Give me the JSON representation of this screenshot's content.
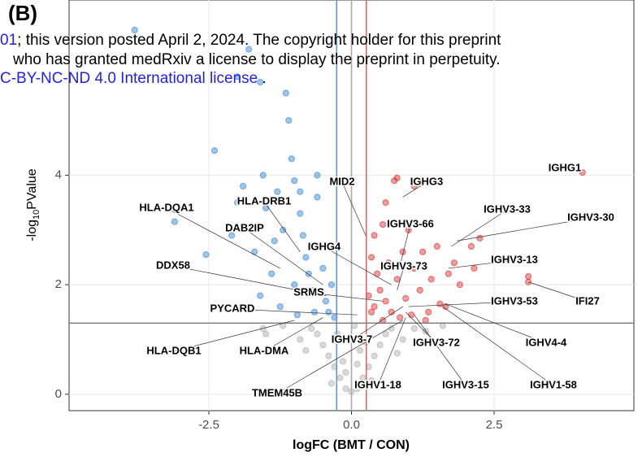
{
  "chart_data": {
    "type": "scatter",
    "panel_label": "(B)",
    "overlay_text": [
      [
        "01",
        "; this version posted April 2, 2024. The copyright holder for this preprint"
      ],
      [
        "who has granted medRxiv a license to display the preprint in perpetuity."
      ],
      [
        "C-BY-NC-ND 4.0 International license",
        " ."
      ]
    ],
    "x_label": "logFC (BMT / CON)",
    "y_label": {
      "prefix": "-log",
      "sub": "10",
      "suffix": "PValue"
    },
    "xlim": [
      -4.95,
      4.95
    ],
    "ylim": [
      -0.3,
      7.2
    ],
    "xticks": [
      -2.5,
      {
        "value": 0,
        "label": "0.0"
      },
      2.5
    ],
    "yticks": [
      0,
      2,
      4
    ],
    "grid": true,
    "vlines": [
      {
        "value": -0.26,
        "color": "#5b9bd5"
      },
      {
        "value": 0,
        "color": "#aaaaaa"
      },
      {
        "value": 0.26,
        "color": "#e06666"
      }
    ],
    "hline": {
      "value": 1.3,
      "color": "#777777"
    },
    "series": [
      {
        "color": "#aaaaaa",
        "x": [
          -0.1,
          0.1,
          -0.2,
          0.2,
          -0.3,
          0.3,
          -0.4,
          0.4,
          -0.5,
          0.5,
          -0.6,
          0.6,
          -0.7,
          0.7,
          -0.15,
          0.15,
          -0.05,
          0.05,
          -0.25,
          0.25,
          -0.9,
          0.9,
          -1.2,
          1.1,
          -1.5,
          1.3,
          -0.8,
          0.8,
          -0.1,
          0.1,
          -1.55,
          1.6,
          -0.35,
          0.35,
          0
        ],
        "values": [
          0.1,
          0.1,
          0.3,
          0.3,
          0.5,
          0.5,
          0.7,
          0.7,
          0.9,
          0.9,
          1.1,
          1.1,
          1.2,
          1.2,
          0.6,
          0.8,
          1.0,
          1.25,
          1.1,
          0.95,
          1.0,
          1.0,
          1.25,
          1.2,
          1.1,
          1.15,
          0.8,
          0.75,
          0.4,
          0.55,
          1.2,
          1.25,
          0.2,
          0.25,
          0.05
        ]
      },
      {
        "color": "#2f7fd1",
        "x": [
          -3.1,
          -3.8,
          -2.4,
          -2.55,
          -2.0,
          -1.9,
          -1.8,
          -1.55,
          -1.5,
          -1.3,
          -1.2,
          -1.15,
          -1.1,
          -1.05,
          -1.0,
          -0.9,
          -0.85,
          -0.8,
          -0.75,
          -0.7,
          -0.6,
          -0.55,
          -0.5,
          -0.45,
          -0.4,
          -0.35,
          -1.7,
          -1.4,
          -1.6,
          -2.1,
          -1.25,
          -1.0,
          -0.95,
          -0.65,
          -0.3,
          -1.35,
          -0.6,
          -0.9,
          -2.0,
          -1.6
        ],
        "values": [
          3.15,
          6.65,
          4.45,
          2.55,
          3.5,
          3.8,
          6.3,
          4.0,
          3.4,
          3.7,
          3.0,
          5.5,
          5.0,
          4.3,
          3.9,
          3.3,
          2.9,
          2.5,
          2.2,
          1.9,
          3.6,
          2.7,
          2.3,
          1.7,
          1.5,
          2.0,
          2.6,
          2.2,
          1.8,
          2.9,
          1.6,
          2.0,
          1.45,
          1.5,
          1.4,
          2.8,
          4.0,
          3.7,
          5.8,
          5.7
        ]
      },
      {
        "color": "#d62728",
        "x": [
          4.05,
          3.1,
          3.1,
          2.25,
          2.1,
          2.15,
          1.9,
          1.8,
          1.65,
          1.55,
          1.3,
          1.1,
          0.8,
          0.75,
          0.6,
          0.55,
          0.4,
          0.35,
          0.45,
          0.5,
          0.6,
          0.7,
          0.8,
          0.9,
          1.0,
          1.1,
          1.2,
          1.25,
          0.35,
          0.4,
          0.65,
          0.95,
          1.05,
          1.4,
          1.5,
          0.3,
          0.85,
          0.55,
          1.7,
          1.35
        ],
        "values": [
          4.05,
          2.05,
          2.15,
          2.85,
          2.7,
          2.3,
          2.0,
          2.4,
          1.6,
          1.65,
          1.35,
          3.8,
          3.95,
          3.9,
          3.5,
          3.1,
          2.9,
          2.5,
          2.2,
          1.9,
          1.7,
          1.5,
          2.1,
          2.6,
          3.0,
          2.3,
          1.9,
          2.6,
          1.5,
          1.6,
          2.4,
          1.75,
          1.45,
          2.1,
          2.7,
          1.8,
          1.4,
          1.35,
          2.2,
          1.5
        ]
      }
    ],
    "annotations": [
      {
        "text": "IGHG1",
        "x": 4.05,
        "y": 4.05
      },
      {
        "text": "IGHG3",
        "x": 0.9,
        "y": 3.6
      },
      {
        "text": "MID2",
        "x": 0.25,
        "y": 2.9
      },
      {
        "text": "HLA-DQA1",
        "x": -1.25,
        "y": 2.3
      },
      {
        "text": "HLA-DRB1",
        "x": -0.9,
        "y": 2.6
      },
      {
        "text": "IGHV3-33",
        "x": 1.75,
        "y": 2.7
      },
      {
        "text": "IGHV3-30",
        "x": 1.85,
        "y": 2.8
      },
      {
        "text": "IGHV3-66",
        "x": 0.85,
        "y": 2.35
      },
      {
        "text": "DAB2IP",
        "x": -0.5,
        "y": 2.0
      },
      {
        "text": "IGHG4",
        "x": 0.7,
        "y": 2.0
      },
      {
        "text": "DDX58",
        "x": -0.45,
        "y": 1.8
      },
      {
        "text": "IGHV3-73",
        "x": 0.8,
        "y": 1.9
      },
      {
        "text": "IGHV3-13",
        "x": 1.7,
        "y": 2.3
      },
      {
        "text": "SRMS",
        "x": 0.55,
        "y": 1.7
      },
      {
        "text": "IGHV3-53",
        "x": 1.0,
        "y": 1.6
      },
      {
        "text": "IFI27",
        "x": 3.1,
        "y": 2.05
      },
      {
        "text": "PYCARD",
        "x": 0.1,
        "y": 1.45
      },
      {
        "text": "HLA-DQB1",
        "x": -1.0,
        "y": 1.35
      },
      {
        "text": "HLA-DMA",
        "x": -0.5,
        "y": 1.4
      },
      {
        "text": "IGHV3-7",
        "x": 0.9,
        "y": 1.6
      },
      {
        "text": "IGHV3-72",
        "x": 0.95,
        "y": 1.5
      },
      {
        "text": "IGHV4-4",
        "x": 1.65,
        "y": 1.65
      },
      {
        "text": "TMEM45B",
        "x": 0.9,
        "y": 1.35
      },
      {
        "text": "IGHV1-18",
        "x": 0.95,
        "y": 1.4
      },
      {
        "text": "IGHV3-15",
        "x": 1.1,
        "y": 1.45
      },
      {
        "text": "IGHV1-58",
        "x": 1.6,
        "y": 1.6
      }
    ]
  }
}
